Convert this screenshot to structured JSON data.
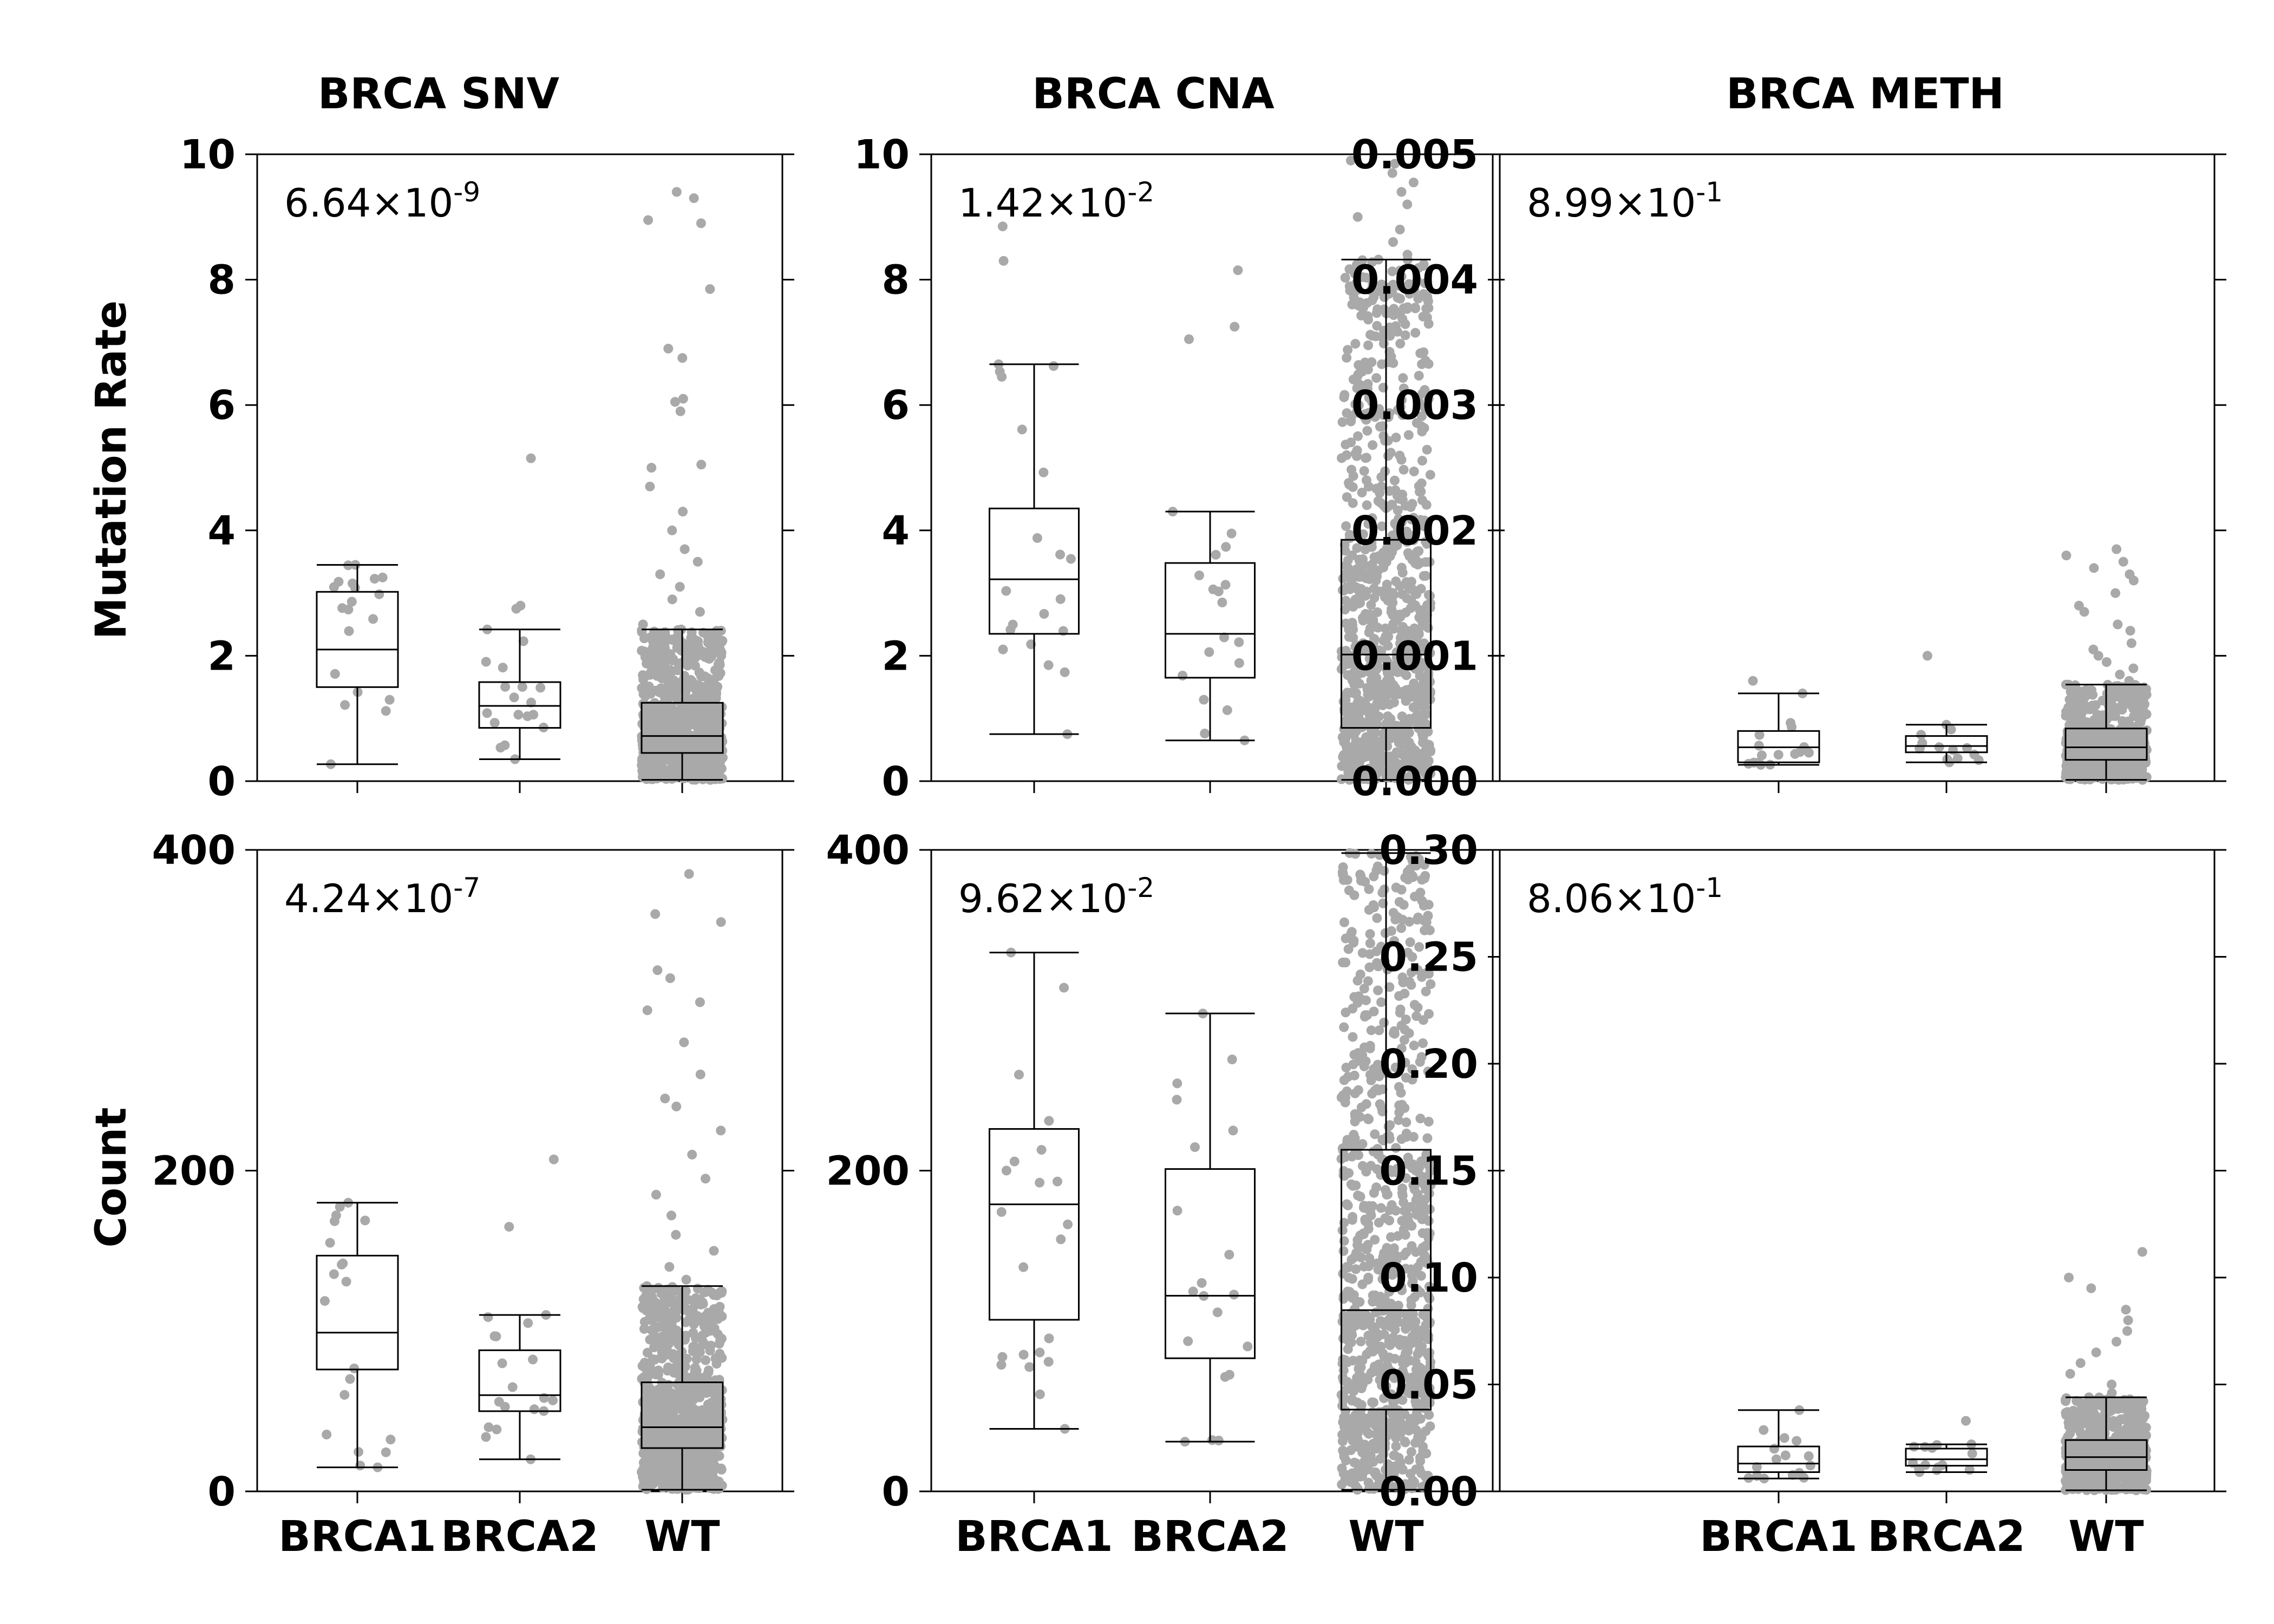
{
  "columns": [
    "BRCA SNV",
    "BRCA CNA",
    "BRCA METH"
  ],
  "row_labels": [
    "Mutation Rate",
    "Count"
  ],
  "point_color": "#a9a9a9",
  "box_color": "#000000",
  "chart_data": [
    {
      "type": "box",
      "title": "BRCA SNV",
      "ylabel": "Mutation Rate",
      "pvalue": {
        "mantissa": "6.64",
        "exponent": "-9"
      },
      "categories": [
        "BRCA1",
        "BRCA2",
        "WT"
      ],
      "ylim": [
        0,
        10
      ],
      "yticks": [
        0,
        2,
        4,
        6,
        8,
        10
      ],
      "tick_labels": [
        "0",
        "2",
        "4",
        "6",
        "8",
        "10"
      ],
      "boxes": [
        {
          "whislo": 0.27,
          "q1": 1.5,
          "med": 2.1,
          "q3": 3.02,
          "whishi": 3.45,
          "n": 20,
          "outliers": []
        },
        {
          "whislo": 0.35,
          "q1": 0.85,
          "med": 1.2,
          "q3": 1.58,
          "whishi": 2.42,
          "n": 18,
          "outliers": [
            2.75,
            2.8,
            5.15
          ]
        },
        {
          "whislo": 0.02,
          "q1": 0.45,
          "med": 0.72,
          "q3": 1.25,
          "whishi": 2.42,
          "n": 900,
          "outliers": [
            2.5,
            2.7,
            2.9,
            3.1,
            3.3,
            3.5,
            3.7,
            4.0,
            4.3,
            4.7,
            5.0,
            5.05,
            5.9,
            6.1,
            6.05,
            6.75,
            6.9,
            7.85,
            8.9,
            8.95,
            9.3,
            9.4
          ]
        }
      ]
    },
    {
      "type": "box",
      "title": "BRCA CNA",
      "ylabel": "",
      "pvalue": {
        "mantissa": "1.42",
        "exponent": "-2"
      },
      "categories": [
        "BRCA1",
        "BRCA2",
        "WT"
      ],
      "ylim": [
        0,
        10
      ],
      "yticks": [
        0,
        2,
        4,
        6,
        8,
        10
      ],
      "tick_labels": [
        "0",
        "2",
        "4",
        "6",
        "8",
        "10"
      ],
      "boxes": [
        {
          "whislo": 0.75,
          "q1": 2.35,
          "med": 3.22,
          "q3": 4.35,
          "whishi": 6.65,
          "n": 20,
          "outliers": [
            8.3,
            8.85
          ]
        },
        {
          "whislo": 0.65,
          "q1": 1.65,
          "med": 2.35,
          "q3": 3.48,
          "whishi": 4.3,
          "n": 18,
          "outliers": [
            7.05,
            7.25,
            8.15
          ]
        },
        {
          "whislo": 0.02,
          "q1": 0.85,
          "med": 2.02,
          "q3": 3.85,
          "whishi": 8.32,
          "n": 900,
          "outliers": [
            8.4,
            8.6,
            8.8,
            9.0,
            9.2,
            9.4,
            9.55,
            9.7,
            9.85,
            9.9
          ]
        }
      ]
    },
    {
      "type": "box",
      "title": "BRCA METH",
      "ylabel": "",
      "pvalue": {
        "mantissa": "8.99",
        "exponent": "-1"
      },
      "categories": [
        "BRCA1",
        "BRCA2",
        "WT"
      ],
      "ylim": [
        0,
        0.005
      ],
      "yticks": [
        0,
        0.001,
        0.002,
        0.003,
        0.004,
        0.005
      ],
      "tick_labels": [
        "0.000",
        "0.001",
        "0.002",
        "0.003",
        "0.004",
        "0.005"
      ],
      "boxes": [
        {
          "whislo": 0.00013,
          "q1": 0.00015,
          "med": 0.00027,
          "q3": 0.0004,
          "whishi": 0.0007,
          "n": 16,
          "outliers": [
            0.0008
          ]
        },
        {
          "whislo": 0.00015,
          "q1": 0.00023,
          "med": 0.00028,
          "q3": 0.00036,
          "whishi": 0.00045,
          "n": 14,
          "outliers": [
            0.001
          ]
        },
        {
          "whislo": 1e-05,
          "q1": 0.00017,
          "med": 0.00027,
          "q3": 0.00042,
          "whishi": 0.00077,
          "n": 700,
          "outliers": [
            0.0008,
            0.00085,
            0.0009,
            0.00095,
            0.001,
            0.00105,
            0.0011,
            0.0012,
            0.00125,
            0.00135,
            0.0014,
            0.0015,
            0.0016,
            0.00165,
            0.0017,
            0.00175,
            0.0018,
            0.00185
          ]
        }
      ]
    },
    {
      "type": "box",
      "title": "",
      "ylabel": "Count",
      "pvalue": {
        "mantissa": "4.24",
        "exponent": "-7"
      },
      "categories": [
        "BRCA1",
        "BRCA2",
        "WT"
      ],
      "ylim": [
        0,
        400
      ],
      "yticks": [
        0,
        200,
        400
      ],
      "tick_labels": [
        "0",
        "200",
        "400"
      ],
      "boxes": [
        {
          "whislo": 15,
          "q1": 76,
          "med": 99,
          "q3": 147,
          "whishi": 180,
          "n": 20,
          "outliers": []
        },
        {
          "whislo": 20,
          "q1": 50,
          "med": 60,
          "q3": 88,
          "whishi": 110,
          "n": 18,
          "outliers": [
            165,
            207
          ]
        },
        {
          "whislo": 1,
          "q1": 27,
          "med": 40,
          "q3": 68,
          "whishi": 128,
          "n": 900,
          "outliers": [
            132,
            140,
            150,
            160,
            172,
            185,
            195,
            210,
            225,
            240,
            245,
            260,
            280,
            300,
            305,
            320,
            325,
            355,
            360,
            385
          ]
        }
      ]
    },
    {
      "type": "box",
      "title": "",
      "ylabel": "",
      "pvalue": {
        "mantissa": "9.62",
        "exponent": "-2"
      },
      "categories": [
        "BRCA1",
        "BRCA2",
        "WT"
      ],
      "ylim": [
        0,
        400
      ],
      "yticks": [
        0,
        200,
        400
      ],
      "tick_labels": [
        "0",
        "200",
        "400"
      ],
      "boxes": [
        {
          "whislo": 39,
          "q1": 107,
          "med": 179,
          "q3": 226,
          "whishi": 336,
          "n": 22,
          "outliers": []
        },
        {
          "whislo": 31,
          "q1": 83,
          "med": 122,
          "q3": 201,
          "whishi": 298,
          "n": 20,
          "outliers": []
        },
        {
          "whislo": 1,
          "q1": 51,
          "med": 113,
          "q3": 213,
          "whishi": 398,
          "n": 900,
          "outliers": []
        }
      ]
    },
    {
      "type": "box",
      "title": "",
      "ylabel": "",
      "pvalue": {
        "mantissa": "8.06",
        "exponent": "-1"
      },
      "categories": [
        "BRCA1",
        "BRCA2",
        "WT"
      ],
      "ylim": [
        0,
        0.3
      ],
      "yticks": [
        0,
        0.05,
        0.1,
        0.15,
        0.2,
        0.25,
        0.3
      ],
      "tick_labels": [
        "0.00",
        "0.05",
        "0.10",
        "0.15",
        "0.20",
        "0.25",
        "0.30"
      ],
      "boxes": [
        {
          "whislo": 0.006,
          "q1": 0.009,
          "med": 0.013,
          "q3": 0.021,
          "whishi": 0.038,
          "n": 16,
          "outliers": []
        },
        {
          "whislo": 0.009,
          "q1": 0.012,
          "med": 0.015,
          "q3": 0.02,
          "whishi": 0.022,
          "n": 14,
          "outliers": [
            0.033
          ]
        },
        {
          "whislo": 0.0005,
          "q1": 0.01,
          "med": 0.016,
          "q3": 0.024,
          "whishi": 0.044,
          "n": 700,
          "outliers": [
            0.046,
            0.05,
            0.055,
            0.06,
            0.065,
            0.07,
            0.075,
            0.08,
            0.085,
            0.095,
            0.1,
            0.112
          ]
        }
      ]
    }
  ]
}
